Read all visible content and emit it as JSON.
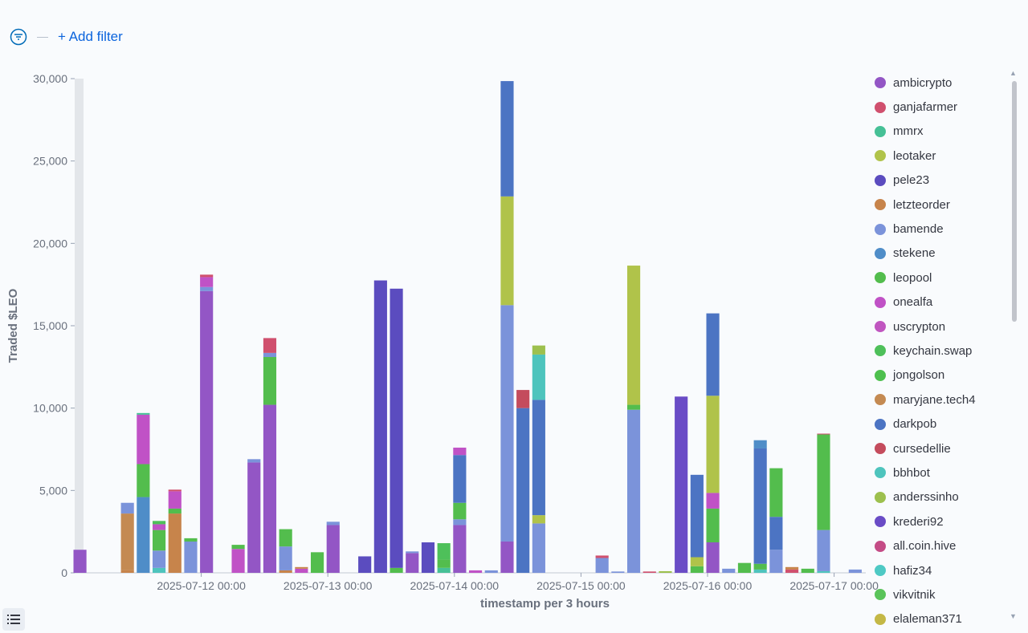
{
  "toolbar": {
    "add_filter_label": "+ Add filter",
    "filter_icon": "filter-icon"
  },
  "colors": [
    "#9356c5",
    "#d0506e",
    "#46c096",
    "#b0c34a",
    "#5b4cbf",
    "#c7844b",
    "#7b93da",
    "#4f8dc8",
    "#53bd4d",
    "#c052c6",
    "#c056c0",
    "#4ec05a",
    "#4ec04e",
    "#c48a52",
    "#4c74c3",
    "#c44c5d",
    "#4ec4bd",
    "#9dc04e",
    "#6a4cc6",
    "#c44c86",
    "#4ec9c4",
    "#5ac45a",
    "#c4b846"
  ],
  "legend": {
    "items": [
      "ambicrypto",
      "ganjafarmer",
      "mmrx",
      "leotaker",
      "pele23",
      "letzteorder",
      "bamende",
      "stekene",
      "leopool",
      "onealfa",
      "uscrypton",
      "keychain.swap",
      "jongolson",
      "maryjane.tech4",
      "darkpob",
      "cursedellie",
      "bbhbot",
      "anderssinho",
      "krederi92",
      "all.coin.hive",
      "hafiz34",
      "vikvitnik",
      "elaleman371"
    ]
  },
  "chart_data": {
    "type": "bar",
    "stacked": true,
    "title": "",
    "xlabel": "timestamp per 3 hours",
    "ylabel": "Traded $LEO",
    "ylim": [
      0,
      30000
    ],
    "yticks": [
      0,
      5000,
      10000,
      15000,
      20000,
      25000,
      30000
    ],
    "ytick_labels": [
      "0",
      "5,000",
      "10,000",
      "15,000",
      "20,000",
      "25,000",
      "30,000"
    ],
    "x_range_hours": [
      -8,
      142
    ],
    "xticks_hours": [
      16,
      40,
      64,
      88,
      112,
      136
    ],
    "xtick_labels": [
      "2025-07-12 00:00",
      "2025-07-13 00:00",
      "2025-07-14 00:00",
      "2025-07-15 00:00",
      "2025-07-16 00:00",
      "2025-07-17 00:00"
    ],
    "bars": [
      {
        "t": -7,
        "segs": [
          {
            "s": "ambicrypto",
            "v": 1400
          }
        ]
      },
      {
        "t": 2,
        "segs": [
          {
            "s": "letzteorder",
            "v": 150
          },
          {
            "s": "maryjane.tech4",
            "v": 3450
          },
          {
            "s": "bamende",
            "v": 650
          }
        ]
      },
      {
        "t": 5,
        "segs": [
          {
            "s": "stekene",
            "v": 4600
          },
          {
            "s": "leopool",
            "v": 2000
          },
          {
            "s": "onealfa",
            "v": 3000
          },
          {
            "s": "mmrx",
            "v": 100
          }
        ]
      },
      {
        "t": 8,
        "segs": [
          {
            "s": "bbhbot",
            "v": 300
          },
          {
            "s": "bamende",
            "v": 1050
          },
          {
            "s": "leopool",
            "v": 1250
          },
          {
            "s": "onealfa",
            "v": 350
          },
          {
            "s": "keychain.swap",
            "v": 200
          }
        ]
      },
      {
        "t": 11,
        "segs": [
          {
            "s": "letzteorder",
            "v": 3600
          },
          {
            "s": "leopool",
            "v": 300
          },
          {
            "s": "onealfa",
            "v": 1050
          },
          {
            "s": "ganjafarmer",
            "v": 100
          }
        ]
      },
      {
        "t": 14,
        "segs": [
          {
            "s": "bamende",
            "v": 1900
          },
          {
            "s": "leopool",
            "v": 200
          }
        ]
      },
      {
        "t": 17,
        "segs": [
          {
            "s": "ambicrypto",
            "v": 17100
          },
          {
            "s": "bamende",
            "v": 250
          },
          {
            "s": "onealfa",
            "v": 600
          },
          {
            "s": "ganjafarmer",
            "v": 150
          }
        ]
      },
      {
        "t": 23,
        "segs": [
          {
            "s": "onealfa",
            "v": 1450
          },
          {
            "s": "leopool",
            "v": 250
          }
        ]
      },
      {
        "t": 26,
        "segs": [
          {
            "s": "ambicrypto",
            "v": 6700
          },
          {
            "s": "bamende",
            "v": 200
          }
        ]
      },
      {
        "t": 29,
        "segs": [
          {
            "s": "ambicrypto",
            "v": 10200
          },
          {
            "s": "leopool",
            "v": 2900
          },
          {
            "s": "bamende",
            "v": 250
          },
          {
            "s": "ganjafarmer",
            "v": 900
          }
        ]
      },
      {
        "t": 32,
        "segs": [
          {
            "s": "letzteorder",
            "v": 150
          },
          {
            "s": "bamende",
            "v": 1450
          },
          {
            "s": "leopool",
            "v": 1050
          }
        ]
      },
      {
        "t": 35,
        "segs": [
          {
            "s": "onealfa",
            "v": 250
          },
          {
            "s": "letzteorder",
            "v": 100
          }
        ]
      },
      {
        "t": 38,
        "segs": [
          {
            "s": "leopool",
            "v": 1250
          }
        ]
      },
      {
        "t": 41,
        "segs": [
          {
            "s": "ambicrypto",
            "v": 2900
          },
          {
            "s": "bamende",
            "v": 200
          }
        ]
      },
      {
        "t": 47,
        "segs": [
          {
            "s": "pele23",
            "v": 1000
          }
        ]
      },
      {
        "t": 50,
        "segs": [
          {
            "s": "pele23",
            "v": 17750
          }
        ]
      },
      {
        "t": 53,
        "segs": [
          {
            "s": "leopool",
            "v": 300
          },
          {
            "s": "pele23",
            "v": 16950
          }
        ]
      },
      {
        "t": 56,
        "segs": [
          {
            "s": "ambicrypto",
            "v": 1200
          },
          {
            "s": "bamende",
            "v": 100
          }
        ]
      },
      {
        "t": 59,
        "segs": [
          {
            "s": "pele23",
            "v": 1850
          }
        ]
      },
      {
        "t": 62,
        "segs": [
          {
            "s": "mmrx",
            "v": 300
          },
          {
            "s": "leopool",
            "v": 500
          },
          {
            "s": "keychain.swap",
            "v": 1000
          }
        ]
      },
      {
        "t": 65,
        "segs": [
          {
            "s": "ambicrypto",
            "v": 2900
          },
          {
            "s": "bamende",
            "v": 350
          },
          {
            "s": "leopool",
            "v": 1000
          },
          {
            "s": "darkpob",
            "v": 2900
          },
          {
            "s": "onealfa",
            "v": 450
          }
        ]
      },
      {
        "t": 68,
        "segs": [
          {
            "s": "onealfa",
            "v": 150
          }
        ]
      },
      {
        "t": 71,
        "segs": [
          {
            "s": "bamende",
            "v": 150
          }
        ]
      },
      {
        "t": 74,
        "segs": [
          {
            "s": "ambicrypto",
            "v": 1900
          },
          {
            "s": "bamende",
            "v": 14350
          },
          {
            "s": "leotaker",
            "v": 6600
          },
          {
            "s": "darkpob",
            "v": 7000
          }
        ]
      },
      {
        "t": 77,
        "segs": [
          {
            "s": "darkpob",
            "v": 10000
          },
          {
            "s": "cursedellie",
            "v": 1100
          }
        ]
      },
      {
        "t": 80,
        "segs": [
          {
            "s": "bamende",
            "v": 3000
          },
          {
            "s": "leotaker",
            "v": 500
          },
          {
            "s": "darkpob",
            "v": 7000
          },
          {
            "s": "bbhbot",
            "v": 2750
          },
          {
            "s": "anderssinho",
            "v": 550
          }
        ]
      },
      {
        "t": 92,
        "segs": [
          {
            "s": "bamende",
            "v": 900
          },
          {
            "s": "ganjafarmer",
            "v": 150
          }
        ]
      },
      {
        "t": 95,
        "segs": [
          {
            "s": "bamende",
            "v": 80
          }
        ]
      },
      {
        "t": 98,
        "segs": [
          {
            "s": "bamende",
            "v": 9900
          },
          {
            "s": "leopool",
            "v": 300
          },
          {
            "s": "leotaker",
            "v": 8450
          }
        ]
      },
      {
        "t": 101,
        "segs": [
          {
            "s": "ganjafarmer",
            "v": 80
          }
        ]
      },
      {
        "t": 104,
        "segs": [
          {
            "s": "anderssinho",
            "v": 100
          }
        ]
      },
      {
        "t": 107,
        "segs": [
          {
            "s": "krederi92",
            "v": 10700
          }
        ]
      },
      {
        "t": 110,
        "segs": [
          {
            "s": "leopool",
            "v": 400
          },
          {
            "s": "leotaker",
            "v": 550
          },
          {
            "s": "darkpob",
            "v": 5000
          }
        ]
      },
      {
        "t": 113,
        "segs": [
          {
            "s": "ambicrypto",
            "v": 1850
          },
          {
            "s": "leopool",
            "v": 2050
          },
          {
            "s": "onealfa",
            "v": 950
          },
          {
            "s": "leotaker",
            "v": 5900
          },
          {
            "s": "darkpob",
            "v": 5000
          }
        ]
      },
      {
        "t": 116,
        "segs": [
          {
            "s": "bamende",
            "v": 250
          }
        ]
      },
      {
        "t": 119,
        "segs": [
          {
            "s": "leopool",
            "v": 600
          }
        ]
      },
      {
        "t": 122,
        "segs": [
          {
            "s": "bbhbot",
            "v": 200
          },
          {
            "s": "leopool",
            "v": 350
          },
          {
            "s": "darkpob",
            "v": 7000
          },
          {
            "s": "stekene",
            "v": 500
          }
        ]
      },
      {
        "t": 125,
        "segs": [
          {
            "s": "bamende",
            "v": 1400
          },
          {
            "s": "darkpob",
            "v": 2000
          },
          {
            "s": "leopool",
            "v": 2950
          }
        ]
      },
      {
        "t": 128,
        "segs": [
          {
            "s": "ganjafarmer",
            "v": 200
          },
          {
            "s": "letzteorder",
            "v": 150
          }
        ]
      },
      {
        "t": 131,
        "segs": [
          {
            "s": "leopool",
            "v": 250
          }
        ]
      },
      {
        "t": 134,
        "segs": [
          {
            "s": "bbhbot",
            "v": 100
          },
          {
            "s": "bamende",
            "v": 2500
          },
          {
            "s": "leopool",
            "v": 5800
          },
          {
            "s": "ganjafarmer",
            "v": 50
          }
        ]
      },
      {
        "t": 140,
        "segs": [
          {
            "s": "bamende",
            "v": 200
          }
        ]
      }
    ]
  }
}
